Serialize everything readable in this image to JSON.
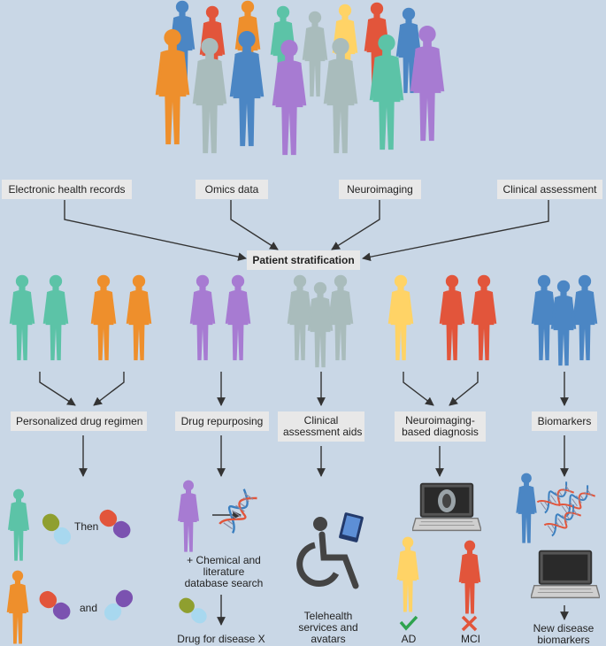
{
  "sources": {
    "ehr": "Electronic health records",
    "omics": "Omics data",
    "neuroimaging": "Neuroimaging",
    "clinical": "Clinical assessment"
  },
  "center": {
    "stratification": "Patient stratification"
  },
  "outcomes": {
    "personalized": "Personalized drug regimen",
    "repurposing": "Drug repurposing",
    "clinical_aids_1": "Clinical",
    "clinical_aids_2": "assessment aids",
    "neuro_diag_1": "Neuroimaging-",
    "neuro_diag_2": "based diagnosis",
    "biomarkers": "Biomarkers"
  },
  "bottom": {
    "then": "Then",
    "and": "and",
    "chem_1": "+ Chemical and",
    "chem_2": "literature",
    "chem_3": "database search",
    "drug_x": "Drug for disease X",
    "tele_1": "Telehealth",
    "tele_2": "services and",
    "tele_3": "avatars",
    "ad": "AD",
    "mci": "MCI",
    "new_1": "New disease",
    "new_2": "biomarkers"
  },
  "colors": {
    "background": "#c9d7e6",
    "blue": "#4b86c4",
    "red": "#e2553b",
    "orange": "#ee8f2c",
    "teal": "#5cc3a7",
    "grey": "#a9bcbc",
    "yellow": "#ffd366",
    "purple": "#a77bd2"
  },
  "icons": [
    "person-icon",
    "pill-icon",
    "dna-icon",
    "laptop-icon",
    "wheelchair-icon",
    "tablet-icon",
    "check-icon",
    "cross-icon"
  ]
}
